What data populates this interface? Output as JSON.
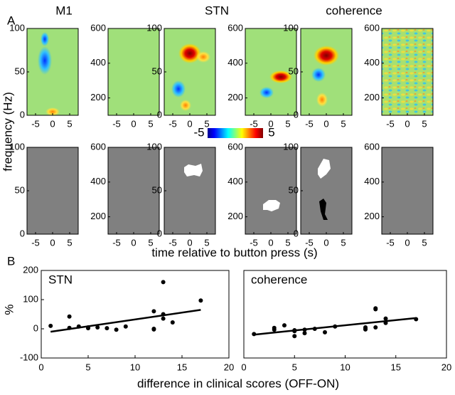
{
  "panel_labels": [
    "A",
    "B"
  ],
  "column_titles": [
    "M1",
    "STN",
    "coherence"
  ],
  "panel_a": {
    "ylabel": "frequency (Hz)",
    "xlabel": "time relative to button press (s)",
    "xlim": [
      -7.5,
      7.5
    ],
    "xticks": [
      -5,
      0,
      5
    ],
    "left_axis": {
      "ylim": [
        0,
        100
      ],
      "yticks": [
        0,
        50,
        100
      ]
    },
    "right_axis": {
      "ylim": [
        100,
        600
      ],
      "yticks": [
        200,
        400,
        600
      ]
    },
    "colorbar": {
      "lim": [
        -5,
        5
      ],
      "ticks": [
        -5,
        5
      ]
    }
  },
  "panel_b": {
    "ylabel": "%",
    "xlabel": "difference in clinical scores (OFF-ON)"
  },
  "chart_data": [
    {
      "type": "scatter",
      "title": "STN",
      "x": [
        1,
        3,
        3,
        4,
        5,
        5,
        6,
        7,
        8,
        9,
        12,
        12,
        12,
        13,
        13,
        13,
        14,
        17
      ],
      "values": [
        10,
        42,
        3,
        8,
        2,
        5,
        5,
        2,
        -3,
        8,
        60,
        -2,
        0,
        160,
        50,
        35,
        22,
        97
      ],
      "fit": {
        "x": [
          1,
          17
        ],
        "values": [
          -10,
          65
        ]
      },
      "color": "#000000",
      "xlim": [
        0,
        20
      ],
      "xticks": [
        0,
        5,
        10,
        15,
        20
      ],
      "ylim": [
        -100,
        200
      ],
      "yticks": [
        -100,
        0,
        100,
        200
      ]
    },
    {
      "type": "scatter",
      "title": "coherence",
      "x": [
        1,
        3,
        3,
        4,
        5,
        5,
        5,
        6,
        6,
        7,
        8,
        9,
        12,
        12,
        12,
        13,
        13,
        13,
        14,
        14,
        17
      ],
      "values": [
        -18,
        3,
        -3,
        12,
        -5,
        -8,
        -25,
        -15,
        -3,
        0,
        -12,
        8,
        5,
        -2,
        0,
        70,
        67,
        5,
        35,
        20,
        33
      ],
      "fit": {
        "x": [
          1,
          17
        ],
        "values": [
          -20,
          37
        ]
      },
      "color": "#000000",
      "xlim": [
        0,
        20
      ],
      "xticks": [
        0,
        5,
        10,
        15,
        20
      ],
      "ylim": [
        -100,
        200
      ]
    }
  ]
}
